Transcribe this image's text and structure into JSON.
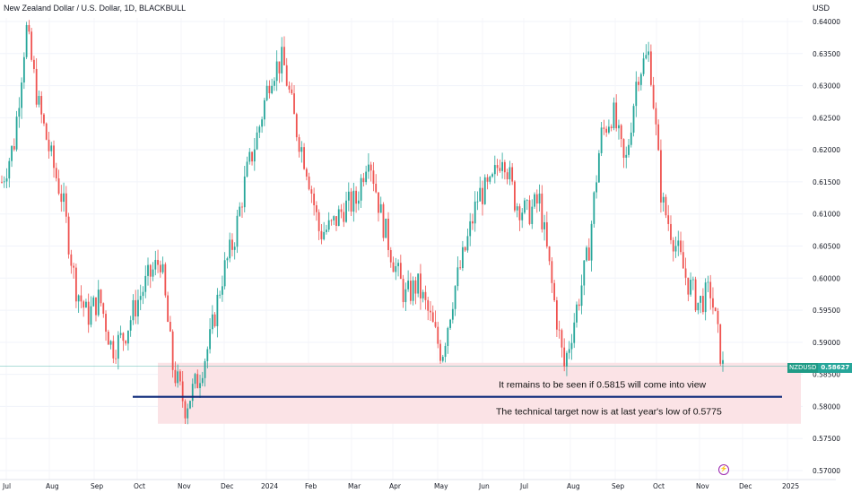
{
  "header": {
    "title": "New Zealand Dollar / U.S. Dollar, 1D, BLACKBULL",
    "currency": "USD"
  },
  "price_label": {
    "symbol": "NZDUSD",
    "price": "0.58627"
  },
  "colors": {
    "up": "#26a69a",
    "down": "#ef5350",
    "zone": "#fbe3e6",
    "target_line": "#0d2a7a"
  },
  "chart_data": {
    "type": "candlestick",
    "title": "New Zealand Dollar / U.S. Dollar, 1D, BLACKBULL",
    "ylabel": "USD",
    "ylim": [
      0.569,
      0.6405
    ],
    "y_ticks": [
      "0.64000",
      "0.63500",
      "0.63000",
      "0.62500",
      "0.62000",
      "0.61500",
      "0.61000",
      "0.60500",
      "0.60000",
      "0.59500",
      "0.59000",
      "0.58500",
      "0.58000",
      "0.57500",
      "0.57000"
    ],
    "x_ticks": [
      "Jul",
      "Aug",
      "Sep",
      "Oct",
      "Nov",
      "Dec",
      "2024",
      "Feb",
      "Mar",
      "Apr",
      "May",
      "Jun",
      "Jul",
      "Aug",
      "Sep",
      "Oct",
      "Nov",
      "Dec",
      "2025"
    ],
    "last_price": 0.58627,
    "support_zone": [
      0.5773,
      0.5868
    ],
    "target_level": 0.5815,
    "annotations": [
      "It remains to be seen if 0.5815 will come into view",
      "The technical target now is at last year's low of 0.5775"
    ],
    "close_path": [
      [
        "Jul",
        0.615
      ],
      [
        "Jul",
        0.621
      ],
      [
        "Jul",
        0.639
      ],
      [
        "Jul",
        0.627
      ],
      [
        "Aug",
        0.619
      ],
      [
        "Aug",
        0.612
      ],
      [
        "Aug",
        0.599
      ],
      [
        "Aug",
        0.594
      ],
      [
        "Sep",
        0.597
      ],
      [
        "Sep",
        0.589
      ],
      [
        "Sep",
        0.591
      ],
      [
        "Sep",
        0.596
      ],
      [
        "Oct",
        0.6
      ],
      [
        "Oct",
        0.603
      ],
      [
        "Oct",
        0.586
      ],
      [
        "Oct",
        0.58
      ],
      [
        "Nov",
        0.584
      ],
      [
        "Nov",
        0.59
      ],
      [
        "Nov",
        0.6
      ],
      [
        "Nov",
        0.606
      ],
      [
        "Dec",
        0.616
      ],
      [
        "Dec",
        0.623
      ],
      [
        "Dec",
        0.632
      ],
      [
        "2024",
        0.634
      ],
      [
        "2024",
        0.624
      ],
      [
        "2024",
        0.617
      ],
      [
        "Feb",
        0.607
      ],
      [
        "Feb",
        0.608
      ],
      [
        "Feb",
        0.611
      ],
      [
        "Mar",
        0.612
      ],
      [
        "Mar",
        0.62
      ],
      [
        "Mar",
        0.61
      ],
      [
        "Mar",
        0.603
      ],
      [
        "Apr",
        0.597
      ],
      [
        "Apr",
        0.599
      ],
      [
        "Apr",
        0.594
      ],
      [
        "Apr",
        0.588
      ],
      [
        "May",
        0.598
      ],
      [
        "May",
        0.605
      ],
      [
        "May",
        0.613
      ],
      [
        "Jun",
        0.614
      ],
      [
        "Jun",
        0.62
      ],
      [
        "Jun",
        0.612
      ],
      [
        "Jul",
        0.61
      ],
      [
        "Jul",
        0.612
      ],
      [
        "Jul",
        0.599
      ],
      [
        "Aug",
        0.586
      ],
      [
        "Aug",
        0.595
      ],
      [
        "Aug",
        0.604
      ],
      [
        "Sep",
        0.622
      ],
      [
        "Sep",
        0.626
      ],
      [
        "Sep",
        0.617
      ],
      [
        "Oct",
        0.632
      ],
      [
        "Oct",
        0.635
      ],
      [
        "Oct",
        0.612
      ],
      [
        "Oct",
        0.606
      ],
      [
        "Nov",
        0.6
      ],
      [
        "Nov",
        0.596
      ],
      [
        "Nov",
        0.598
      ],
      [
        "Nov",
        0.586
      ]
    ]
  }
}
